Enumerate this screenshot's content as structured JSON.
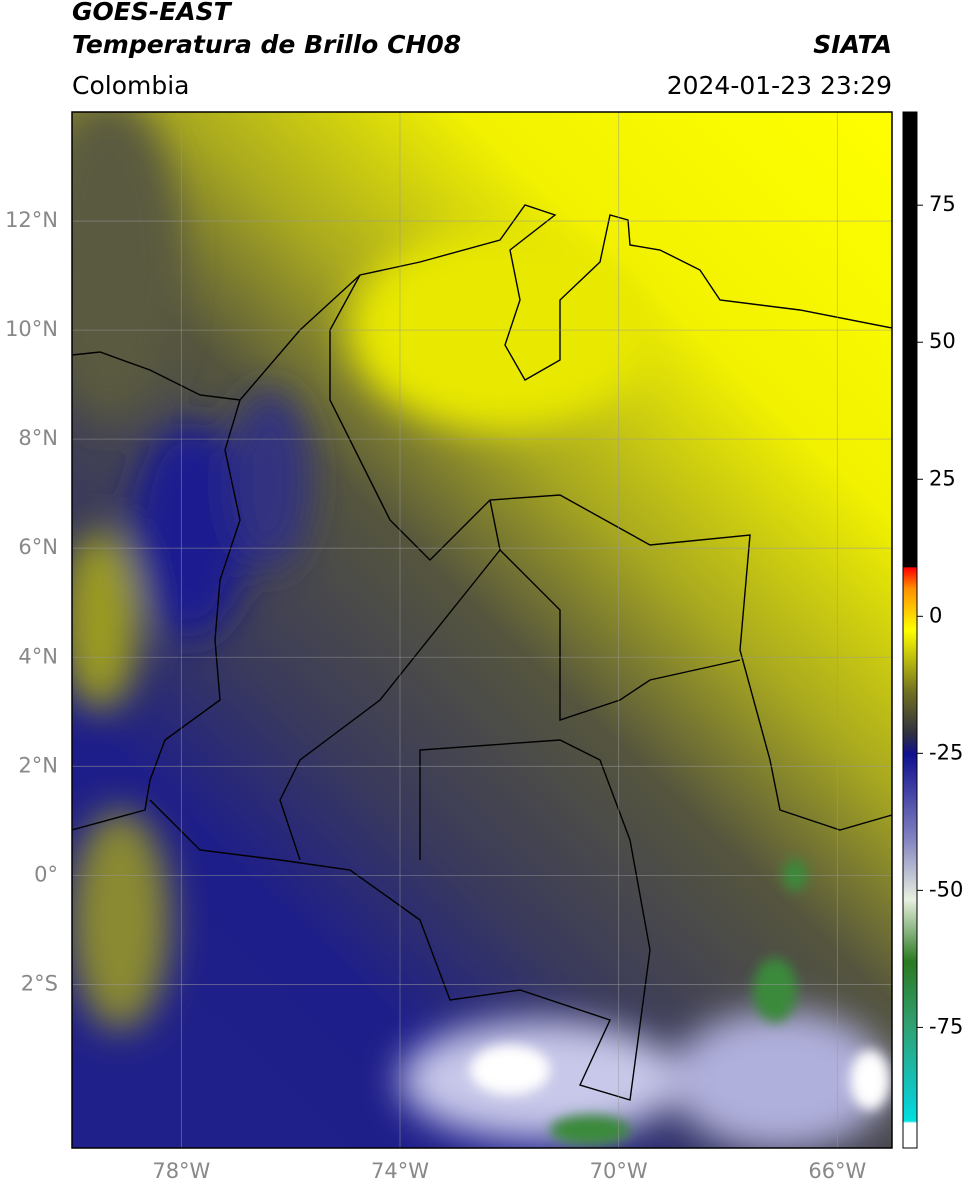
{
  "header": {
    "title": "GOES-EAST",
    "subtitle": "Temperatura de Brillo CH08",
    "region": "Colombia",
    "source": "SIATA",
    "datetime": "2024-01-23 23:29"
  },
  "map": {
    "xlim": [
      -80,
      -65
    ],
    "ylim": [
      -5,
      14
    ],
    "xticks": [
      {
        "value": -78,
        "label": "78°W"
      },
      {
        "value": -74,
        "label": "74°W"
      },
      {
        "value": -70,
        "label": "70°W"
      },
      {
        "value": -66,
        "label": "66°W"
      }
    ],
    "yticks": [
      {
        "value": 12,
        "label": "12°N"
      },
      {
        "value": 10,
        "label": "10°N"
      },
      {
        "value": 8,
        "label": "8°N"
      },
      {
        "value": 6,
        "label": "6°N"
      },
      {
        "value": 4,
        "label": "4°N"
      },
      {
        "value": 2,
        "label": "2°N"
      },
      {
        "value": 0,
        "label": "0°"
      },
      {
        "value": -2,
        "label": "2°S"
      }
    ]
  },
  "colorbar": {
    "lim": [
      -97,
      92
    ],
    "ticks": [
      75,
      50,
      25,
      0,
      -25,
      -50,
      -75
    ]
  }
}
